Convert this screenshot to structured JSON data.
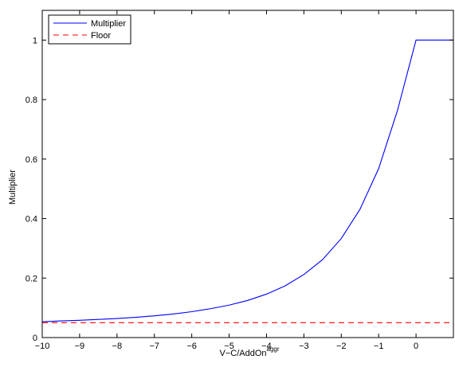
{
  "chart_data": {
    "type": "line",
    "title": "",
    "xlabel": "V−C/AddOn",
    "xlabel_superscript": "aggr",
    "ylabel": "Multiplier",
    "xlim": [
      -10,
      1
    ],
    "ylim": [
      0,
      1.1
    ],
    "xticks": [
      -10,
      -9,
      -8,
      -7,
      -6,
      -5,
      -4,
      -3,
      -2,
      -1,
      0
    ],
    "xtick_labels": [
      "−10",
      "−9",
      "−8",
      "−7",
      "−6",
      "−5",
      "−4",
      "−3",
      "−2",
      "−1",
      "0"
    ],
    "yticks": [
      0,
      0.2,
      0.4,
      0.6,
      0.8,
      1
    ],
    "ytick_labels": [
      "0",
      "0.2",
      "0.4",
      "0.6",
      "0.8",
      "1"
    ],
    "grid": false,
    "legend_position": "top-left",
    "series": [
      {
        "name": "Multiplier",
        "color": "#0000ff",
        "style": "solid",
        "x": [
          -10,
          -9.5,
          -9,
          -8.5,
          -8,
          -7.5,
          -7,
          -6.5,
          -6,
          -5.5,
          -5,
          -4.5,
          -4,
          -3.5,
          -3,
          -2.5,
          -2,
          -1.5,
          -1,
          -0.5,
          0,
          1
        ],
        "y": [
          0.053,
          0.056,
          0.058,
          0.061,
          0.064,
          0.068,
          0.073,
          0.079,
          0.087,
          0.097,
          0.109,
          0.125,
          0.146,
          0.174,
          0.212,
          0.262,
          0.333,
          0.431,
          0.568,
          0.762,
          1.0,
          1.0
        ]
      },
      {
        "name": "Floor",
        "color": "#ff0000",
        "style": "dashed",
        "x": [
          -10,
          1
        ],
        "y": [
          0.05,
          0.05
        ]
      }
    ]
  }
}
